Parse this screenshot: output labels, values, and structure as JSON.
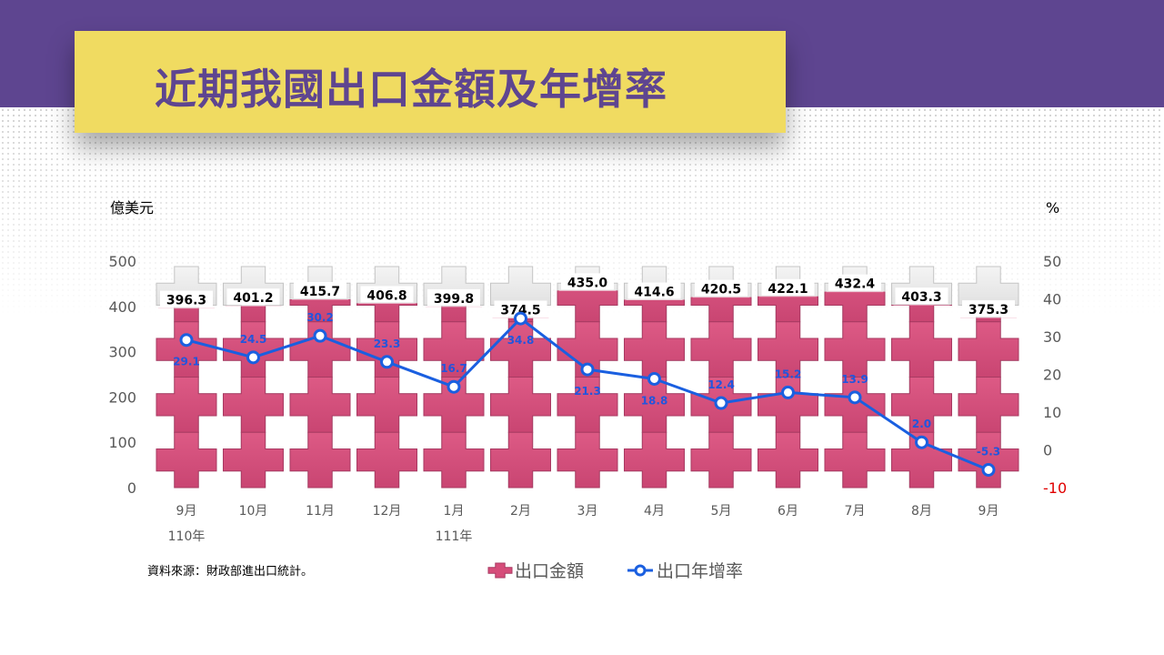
{
  "title": "近期我國出口金額及年增率",
  "source": "資料來源：財政部進出口統計。",
  "colors": {
    "header_band": "#5e4590",
    "title_box": "#f0db61",
    "bar_fill": "#d64d7a",
    "line": "#1a5fe0",
    "line_labels": "#2255dd",
    "negative_tick": "#e00000"
  },
  "chart_data": {
    "type": "bar+line",
    "categories": [
      "9月",
      "10月",
      "11月",
      "12月",
      "1月",
      "2月",
      "3月",
      "4月",
      "5月",
      "6月",
      "7月",
      "8月",
      "9月"
    ],
    "year_labels": [
      "110年",
      "",
      "",
      "",
      "111年",
      "",
      "",
      "",
      "",
      "",
      "",
      "",
      ""
    ],
    "series": [
      {
        "name": "出口金額",
        "type": "bar",
        "axis": "left",
        "values": [
          396.3,
          401.2,
          415.7,
          406.8,
          399.8,
          374.5,
          435.0,
          414.6,
          420.5,
          422.1,
          432.4,
          403.3,
          375.3
        ],
        "labels": [
          "396.3",
          "401.2",
          "415.7",
          "406.8",
          "399.8",
          "374.5",
          "435.0",
          "414.6",
          "420.5",
          "422.1",
          "432.4",
          "403.3",
          "375.3"
        ]
      },
      {
        "name": "出口年增率",
        "type": "line",
        "axis": "right",
        "values": [
          29.1,
          24.5,
          30.2,
          23.3,
          16.7,
          34.8,
          21.3,
          18.8,
          12.4,
          15.2,
          13.9,
          2.0,
          -5.3
        ],
        "labels": [
          "29.1",
          "24.5",
          "30.2",
          "23.3",
          "16.7",
          "34.8",
          "21.3",
          "18.8",
          "12.4",
          "15.2",
          "13.9",
          "2.0",
          "-5.3"
        ]
      }
    ],
    "y_left": {
      "label": "億美元",
      "range": [
        0,
        500
      ],
      "ticks": [
        "0",
        "100",
        "200",
        "300",
        "400",
        "500"
      ]
    },
    "y_right": {
      "label": "%",
      "range": [
        -10,
        50
      ],
      "ticks": [
        "-10",
        "0",
        "10",
        "20",
        "30",
        "40",
        "50"
      ]
    },
    "legend": {
      "position": "bottom-center",
      "items": [
        "出口金額",
        "出口年增率"
      ]
    },
    "grid": false
  }
}
